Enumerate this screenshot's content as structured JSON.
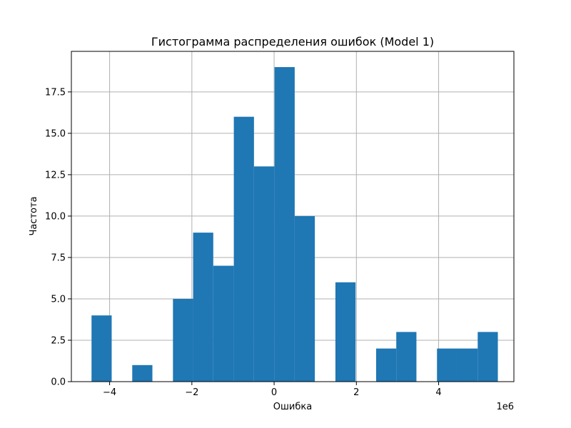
{
  "chart_data": {
    "type": "bar",
    "subtype": "histogram",
    "title": "Гистограмма распределения ошибок (Model 1)",
    "xlabel": "Ошибка",
    "ylabel": "Частота",
    "x_offset_text": "1e6",
    "bar_color": "#1f77b4",
    "grid": true,
    "xlim": [
      -4.93,
      5.83
    ],
    "ylim": [
      0,
      19.95
    ],
    "xticks": [
      -4,
      -2,
      0,
      2,
      4
    ],
    "xtick_labels": [
      "−4",
      "−2",
      "0",
      "2",
      "4"
    ],
    "yticks": [
      0.0,
      2.5,
      5.0,
      7.5,
      10.0,
      12.5,
      15.0,
      17.5
    ],
    "ytick_labels": [
      "0.0",
      "2.5",
      "5.0",
      "7.5",
      "10.0",
      "12.5",
      "15.0",
      "17.5"
    ],
    "bin_edges": [
      -4.44,
      -3.95,
      -3.45,
      -2.96,
      -2.46,
      -1.97,
      -1.48,
      -0.98,
      -0.49,
      0.01,
      0.5,
      0.99,
      1.49,
      1.98,
      2.48,
      2.97,
      3.46,
      3.96,
      4.45,
      4.95,
      5.44
    ],
    "counts": [
      4,
      0,
      1,
      0,
      5,
      9,
      7,
      16,
      13,
      19,
      10,
      0,
      6,
      0,
      2,
      3,
      0,
      2,
      2,
      3
    ]
  }
}
